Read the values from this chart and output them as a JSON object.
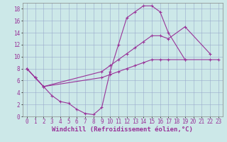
{
  "xlabel": "Windchill (Refroidissement éolien,°C)",
  "background_color": "#cce8e8",
  "grid_color": "#99aacc",
  "line_color": "#993399",
  "xlim": [
    -0.5,
    23.5
  ],
  "ylim": [
    0,
    19
  ],
  "xticks": [
    0,
    1,
    2,
    3,
    4,
    5,
    6,
    7,
    8,
    9,
    10,
    11,
    12,
    13,
    14,
    15,
    16,
    17,
    18,
    19,
    20,
    21,
    22,
    23
  ],
  "yticks": [
    0,
    2,
    4,
    6,
    8,
    10,
    12,
    14,
    16,
    18
  ],
  "series": [
    {
      "x": [
        0,
        1,
        2,
        3,
        4,
        5,
        6,
        7,
        8,
        9,
        10,
        11,
        12,
        13,
        14,
        15,
        16,
        17,
        19
      ],
      "y": [
        8.0,
        6.5,
        5.0,
        3.5,
        2.5,
        2.2,
        1.2,
        0.5,
        0.3,
        1.5,
        7.5,
        12.0,
        16.5,
        17.5,
        18.5,
        18.5,
        17.5,
        14.0,
        9.5
      ]
    },
    {
      "x": [
        0,
        1,
        2,
        9,
        10,
        11,
        12,
        13,
        14,
        15,
        16,
        17,
        19,
        22
      ],
      "y": [
        8.0,
        6.5,
        5.0,
        7.5,
        8.5,
        9.5,
        10.5,
        11.5,
        12.5,
        13.5,
        13.5,
        13.0,
        15.0,
        10.5
      ]
    },
    {
      "x": [
        0,
        1,
        2,
        9,
        10,
        11,
        12,
        13,
        14,
        15,
        16,
        17,
        19,
        22,
        23
      ],
      "y": [
        8.0,
        6.5,
        5.0,
        6.5,
        7.0,
        7.5,
        8.0,
        8.5,
        9.0,
        9.5,
        9.5,
        9.5,
        9.5,
        9.5,
        9.5
      ]
    }
  ],
  "tick_fontsize": 5.5,
  "xlabel_fontsize": 6.5,
  "marker": "+",
  "markersize": 3.5,
  "linewidth": 0.8
}
